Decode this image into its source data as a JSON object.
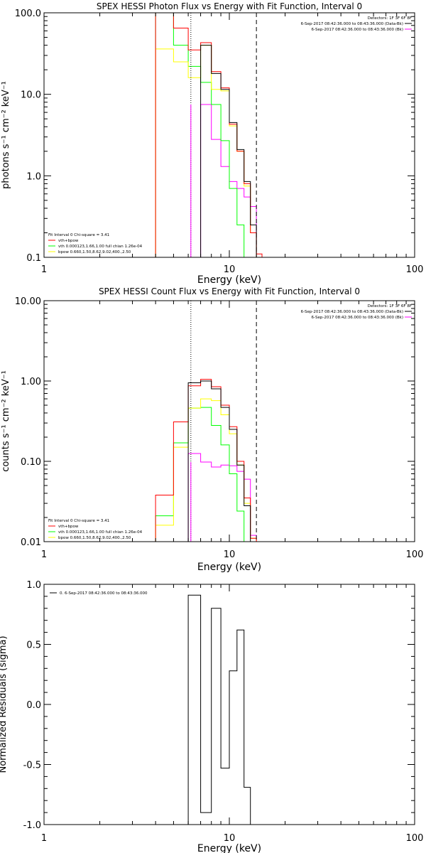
{
  "colors": {
    "background": "#ffffff",
    "axes": "#000000",
    "data": "#000000",
    "model_total": "#ff0000",
    "vth": "#00ff00",
    "bpow": "#ffff00",
    "background_series": "#ff00ff"
  },
  "chart_data": [
    {
      "type": "line",
      "title": "SPEX HESSI Photon Flux vs Energy with Fit Function, Interval 0",
      "xlabel": "Energy (keV)",
      "ylabel": "photons s⁻¹ cm⁻² keV⁻¹",
      "xscale": "log",
      "yscale": "log",
      "xlim": [
        1,
        100
      ],
      "ylim": [
        0.1,
        100
      ],
      "xticks": [
        "1",
        "10",
        "100"
      ],
      "yticks": [
        "0.1",
        "1.0",
        "10.0",
        "100.0"
      ],
      "vlines": [
        {
          "x": 6.2,
          "style": "dotted"
        },
        {
          "x": 14.0,
          "style": "dashed"
        }
      ],
      "legend_topright": [
        "Detectors: 1F 3F 6F 8F",
        "6-Sep-2017 08:42:36.000 to 08:43:36.000 (Data-Bk)",
        "6-Sep-2017 08:42:36.000 to 08:43:36.000 (Bk)"
      ],
      "legend_bottomleft": [
        "Fit Interval 0   Chi-square = 3.41",
        "vth+bpow",
        "vth 0.000123,1.66,1.00  full chian 1.26e-04",
        "bpow 0.660,1.50,8.62,9.02,400.,2.50"
      ],
      "edges": [
        4,
        5,
        6,
        7,
        8,
        9,
        10,
        11,
        12,
        13,
        14,
        15
      ],
      "series": [
        {
          "key": "data",
          "values": [
            null,
            null,
            null,
            40,
            18,
            11.5,
            4.5,
            2.1,
            0.85,
            0.25,
            null
          ]
        },
        {
          "key": "total",
          "values": [
            105,
            65,
            35,
            43,
            19,
            12,
            4.3,
            2.0,
            0.8,
            0.2,
            0.11
          ]
        },
        {
          "key": "vth",
          "values": [
            105,
            40,
            22,
            14,
            7.5,
            2.7,
            0.7,
            0.25,
            0.08,
            null,
            null
          ]
        },
        {
          "key": "bpow",
          "values": [
            36,
            25,
            16,
            40,
            11.5,
            11,
            4.1,
            2.0,
            0.75,
            0.2,
            0.1
          ]
        },
        {
          "key": "bk",
          "values": [
            null,
            null,
            null,
            7.5,
            2.8,
            1.3,
            0.85,
            0.7,
            0.55,
            0.42,
            null
          ]
        }
      ]
    },
    {
      "type": "line",
      "title": "SPEX HESSI Count Flux vs Energy with Fit Function, Interval 0",
      "xlabel": "Energy (keV)",
      "ylabel": "counts s⁻¹ cm⁻² keV⁻¹",
      "xscale": "log",
      "yscale": "log",
      "xlim": [
        1,
        100
      ],
      "ylim": [
        0.01,
        10
      ],
      "xticks": [
        "1",
        "10",
        "100"
      ],
      "yticks": [
        "0.01",
        "0.10",
        "1.00",
        "10.00"
      ],
      "vlines": [
        {
          "x": 6.2,
          "style": "dotted"
        },
        {
          "x": 14.0,
          "style": "dashed"
        }
      ],
      "legend_topright": [
        "Detectors: 1F 3F 6F 8F",
        "6-Sep-2017 08:42:36.000 to 08:43:36.000 (Data-Bk)",
        "6-Sep-2017 08:42:36.000 to 08:43:36.000 (Bk)"
      ],
      "legend_bottomleft": [
        "Fit Interval 0   Chi-square = 3.41",
        "vth+bpow",
        "vth 0.000123,1.66,1.00  full chian 1.26e-04",
        "bpow 0.660,1.50,8.62,9.02,400.,2.50"
      ],
      "edges": [
        4,
        5,
        6,
        7,
        8,
        9,
        10,
        11,
        12,
        13,
        14,
        15
      ],
      "series": [
        {
          "key": "data",
          "values": [
            null,
            null,
            0.95,
            1.0,
            0.8,
            0.47,
            0.25,
            0.09,
            0.028,
            null,
            null
          ]
        },
        {
          "key": "total",
          "values": [
            0.038,
            0.31,
            0.87,
            1.05,
            0.85,
            0.5,
            0.27,
            0.1,
            0.035,
            0.011,
            null
          ]
        },
        {
          "key": "vth",
          "values": [
            0.021,
            0.17,
            0.46,
            0.47,
            0.28,
            0.16,
            0.07,
            0.024,
            0.009,
            null,
            null
          ]
        },
        {
          "key": "bpow",
          "values": [
            0.016,
            0.15,
            0.46,
            0.6,
            0.57,
            0.38,
            0.22,
            0.09,
            0.03,
            0.011,
            null
          ]
        },
        {
          "key": "bk",
          "values": [
            null,
            null,
            0.125,
            0.098,
            0.085,
            0.09,
            0.088,
            0.075,
            0.06,
            0.012,
            null
          ]
        }
      ]
    },
    {
      "type": "line",
      "title": "",
      "xlabel": "Energy (keV)",
      "ylabel": "Normalized Residuals (sigma)",
      "xscale": "log",
      "yscale": "linear",
      "xlim": [
        1,
        100
      ],
      "ylim": [
        -1.0,
        1.0
      ],
      "xticks": [
        "1",
        "10",
        "100"
      ],
      "yticks": [
        "-1.0",
        "-0.5",
        "0.0",
        "0.5",
        "1.0"
      ],
      "legend_topleft": [
        "0. 6-Sep-2017 08:42:36.000 to 08:43:36.000"
      ],
      "edges": [
        6,
        7,
        8,
        9,
        10,
        11,
        12,
        13,
        14
      ],
      "series": [
        {
          "key": "residuals",
          "values": [
            0.91,
            -0.9,
            0.8,
            -0.53,
            0.28,
            0.62,
            -0.69,
            -1.0
          ]
        }
      ]
    }
  ]
}
